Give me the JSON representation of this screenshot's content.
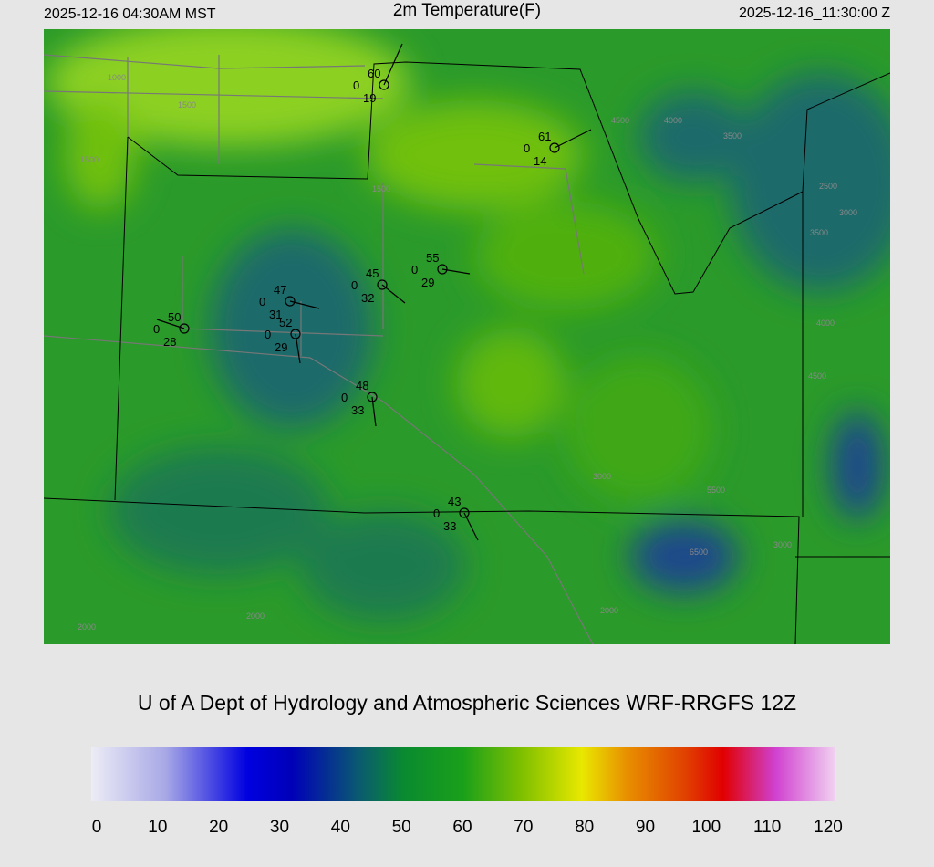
{
  "header": {
    "local_time": "2025-12-16 04:30AM MST",
    "title": "2m Temperature(F)",
    "utc_time": "2025-12-16_11:30:00 Z"
  },
  "stations": [
    {
      "temp": "60",
      "mid": "0",
      "dew": "19"
    },
    {
      "temp": "61",
      "mid": "0",
      "dew": "14"
    },
    {
      "temp": "55",
      "mid": "0",
      "dew": "29"
    },
    {
      "temp": "45",
      "mid": "0",
      "dew": "32"
    },
    {
      "temp": "47",
      "mid": "0",
      "dew": "31"
    },
    {
      "temp": "50",
      "mid": "0",
      "dew": "28"
    },
    {
      "temp": "52",
      "mid": "0",
      "dew": "29"
    },
    {
      "temp": "48",
      "mid": "0",
      "dew": "33"
    },
    {
      "temp": "43",
      "mid": "0",
      "dew": "33"
    }
  ],
  "contour_labels": [
    "1000",
    "1500",
    "1500",
    "1500",
    "4500",
    "4000",
    "3500",
    "3000",
    "2500",
    "3500",
    "4000",
    "4500",
    "6500",
    "5500",
    "2000",
    "2000",
    "2000",
    "3000",
    "3000"
  ],
  "credit": "U of A Dept of Hydrology and Atmospheric Sciences WRF-RRGFS 12Z",
  "colorbar": {
    "ticks": [
      0,
      10,
      20,
      30,
      40,
      50,
      60,
      70,
      80,
      90,
      100,
      110,
      120
    ]
  }
}
